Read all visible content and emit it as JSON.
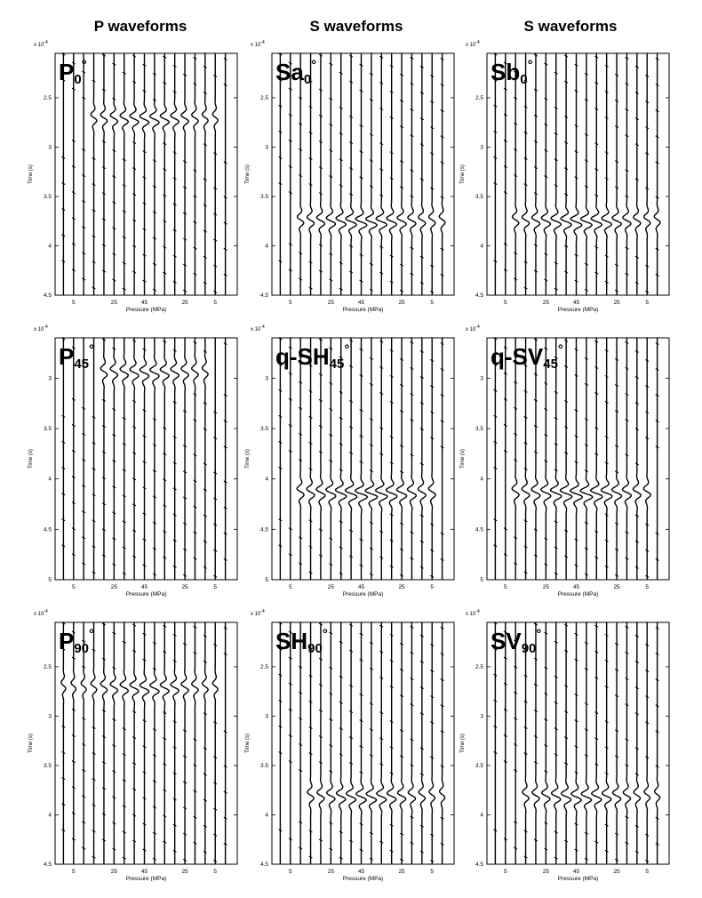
{
  "columns": [
    "P waveforms",
    "S waveforms",
    "S waveforms"
  ],
  "chart_data": [
    {
      "type": "line",
      "panel": "P0",
      "label": {
        "main": "P",
        "sub": "0",
        "sup": "°"
      },
      "ylabel": "Time (s)",
      "xlabel": "Pressure (MPa)",
      "yscale_label": "x 10",
      "yscale_exp": "-4",
      "yticks": [
        "2.5",
        "3",
        "3.5",
        "4",
        "4.5"
      ],
      "ylim": [
        2.05,
        4.5
      ],
      "xticks": [
        "5",
        "25",
        "45",
        "25",
        "5"
      ],
      "ntraces": 17,
      "arrival": 2.72,
      "amplitude": 0.9,
      "extent": [
        0.2,
        0.83
      ]
    },
    {
      "type": "line",
      "panel": "Sa0",
      "label": {
        "main": "Sa",
        "sub": "0",
        "sup": "°"
      },
      "ylabel": "Time (s)",
      "xlabel": "Pressure (MPa)",
      "yscale_label": "x 10",
      "yscale_exp": "-4",
      "yticks": [
        "2.5",
        "3",
        "3.5",
        "4",
        "4.5"
      ],
      "ylim": [
        2.05,
        4.5
      ],
      "xticks": [
        "5",
        "25",
        "45",
        "25",
        "5"
      ],
      "ntraces": 17,
      "arrival": 3.76,
      "amplitude": 1.1,
      "extent": [
        0.15,
        0.9
      ]
    },
    {
      "type": "line",
      "panel": "Sb0",
      "label": {
        "main": "Sb",
        "sub": "0",
        "sup": "°"
      },
      "ylabel": "Time (s)",
      "xlabel": "Pressure (MPa)",
      "yscale_label": "x 10",
      "yscale_exp": "-4",
      "yticks": [
        "2.5",
        "3",
        "3.5",
        "4",
        "4.5"
      ],
      "ylim": [
        2.05,
        4.5
      ],
      "xticks": [
        "5",
        "25",
        "45",
        "25",
        "5"
      ],
      "ntraces": 17,
      "arrival": 3.76,
      "amplitude": 1.1,
      "extent": [
        0.15,
        0.9
      ]
    },
    {
      "type": "line",
      "panel": "P45",
      "label": {
        "main": "P",
        "sub": "45",
        "sup": "°"
      },
      "ylabel": "Time (s)",
      "xlabel": "Pressure (MPa)",
      "yscale_label": "x 10",
      "yscale_exp": "-4",
      "yticks": [
        "3",
        "3.5",
        "4",
        "4.5",
        "5"
      ],
      "ylim": [
        2.6,
        5.0
      ],
      "xticks": [
        "5",
        "25",
        "45",
        "25",
        "5"
      ],
      "ntraces": 17,
      "arrival": 2.95,
      "amplitude": 0.9,
      "extent": [
        0.25,
        0.8
      ]
    },
    {
      "type": "line",
      "panel": "q-SH45",
      "label": {
        "main": "q-SH",
        "sub": "45",
        "sup": "°"
      },
      "ylabel": "Time (s)",
      "xlabel": "Pressure (MPa)",
      "yscale_label": "x 10",
      "yscale_exp": "-4",
      "yticks": [
        "3",
        "3.5",
        "4",
        "4.5",
        "5"
      ],
      "ylim": [
        2.6,
        5.0
      ],
      "xticks": [
        "5",
        "25",
        "45",
        "25",
        "5"
      ],
      "ntraces": 17,
      "arrival": 4.15,
      "amplitude": 1.2,
      "extent": [
        0.15,
        0.85
      ]
    },
    {
      "type": "line",
      "panel": "q-SV45",
      "label": {
        "main": "q-SV",
        "sub": "45",
        "sup": "°"
      },
      "ylabel": "Time (s)",
      "xlabel": "Pressure (MPa)",
      "yscale_label": "x 10",
      "yscale_exp": "-4",
      "yticks": [
        "3",
        "3.5",
        "4",
        "4.5",
        "5"
      ],
      "ylim": [
        2.6,
        5.0
      ],
      "xticks": [
        "5",
        "25",
        "45",
        "25",
        "5"
      ],
      "ntraces": 17,
      "arrival": 4.15,
      "amplitude": 1.2,
      "extent": [
        0.15,
        0.85
      ]
    },
    {
      "type": "line",
      "panel": "P90",
      "label": {
        "main": "P",
        "sub": "90",
        "sup": "°"
      },
      "ylabel": "Time (s)",
      "xlabel": "Pressure (MPa)",
      "yscale_label": "x 10",
      "yscale_exp": "-4",
      "yticks": [
        "2.5",
        "3",
        "3.5",
        "4",
        "4.5"
      ],
      "ylim": [
        2.05,
        4.5
      ],
      "xticks": [
        "5",
        "25",
        "45",
        "25",
        "5"
      ],
      "ntraces": 17,
      "arrival": 2.72,
      "amplitude": 0.9,
      "extent": [
        0.05,
        0.83
      ]
    },
    {
      "type": "line",
      "panel": "SH90",
      "label": {
        "main": "SH",
        "sub": "90",
        "sup": "°"
      },
      "ylabel": "Time (s)",
      "xlabel": "Pressure (MPa)",
      "yscale_label": "x 10",
      "yscale_exp": "-4",
      "yticks": [
        "2.5",
        "3",
        "3.5",
        "4",
        "4.5"
      ],
      "ylim": [
        2.05,
        4.5
      ],
      "xticks": [
        "5",
        "25",
        "45",
        "25",
        "5"
      ],
      "ntraces": 17,
      "arrival": 3.82,
      "amplitude": 1.0,
      "extent": [
        0.2,
        0.9
      ]
    },
    {
      "type": "line",
      "panel": "SV90",
      "label": {
        "main": "SV",
        "sub": "90",
        "sup": "°"
      },
      "ylabel": "Time (s)",
      "xlabel": "Pressure (MPa)",
      "yscale_label": "x 10",
      "yscale_exp": "-4",
      "yticks": [
        "2.5",
        "3",
        "3.5",
        "4",
        "4.5"
      ],
      "ylim": [
        2.05,
        4.5
      ],
      "xticks": [
        "5",
        "25",
        "45",
        "25",
        "5"
      ],
      "ntraces": 17,
      "arrival": 3.82,
      "amplitude": 1.0,
      "extent": [
        0.2,
        0.9
      ]
    }
  ]
}
